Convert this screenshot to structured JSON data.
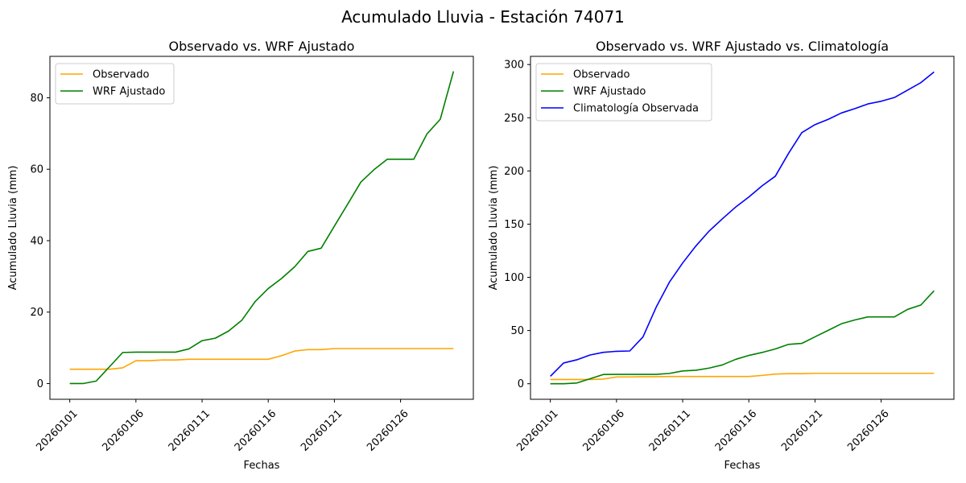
{
  "figure": {
    "suptitle": "Acumulado Lluvia - Estación 74071"
  },
  "chart_data": [
    {
      "type": "line",
      "title": "Observado vs. WRF Ajustado",
      "xlabel": "Fechas",
      "ylabel": "Acumulado Lluvia (mm)",
      "x": [
        "20260101",
        "20260102",
        "20260103",
        "20260104",
        "20260105",
        "20260106",
        "20260107",
        "20260108",
        "20260109",
        "20260110",
        "20260111",
        "20260112",
        "20260113",
        "20260114",
        "20260115",
        "20260116",
        "20260117",
        "20260118",
        "20260119",
        "20260120",
        "20260121",
        "20260122",
        "20260123",
        "20260124",
        "20260125",
        "20260126",
        "20260127",
        "20260128",
        "20260129",
        "20260130"
      ],
      "xticks": [
        "20260101",
        "20260106",
        "20260111",
        "20260116",
        "20260121",
        "20260126"
      ],
      "xlim": [
        -1.5,
        30.5
      ],
      "ylim": [
        -4.4,
        91.6
      ],
      "yticks": [
        0,
        20,
        40,
        60,
        80
      ],
      "legend": "upper-left",
      "series": [
        {
          "name": "Observado",
          "color": "#ffa500",
          "values": [
            4.0,
            4.0,
            4.0,
            4.0,
            4.4,
            6.4,
            6.4,
            6.6,
            6.6,
            6.8,
            6.8,
            6.8,
            6.8,
            6.8,
            6.8,
            6.8,
            7.8,
            9.1,
            9.5,
            9.5,
            9.8,
            9.8,
            9.8,
            9.8,
            9.8,
            9.8,
            9.8,
            9.8,
            9.8,
            9.8
          ]
        },
        {
          "name": "WRF Ajustado",
          "color": "#008000",
          "values": [
            0.0,
            0.0,
            0.7,
            4.7,
            8.7,
            8.8,
            8.8,
            8.8,
            8.8,
            9.7,
            12.0,
            12.7,
            14.7,
            17.7,
            22.9,
            26.6,
            29.4,
            32.7,
            37.0,
            37.9,
            44.1,
            50.2,
            56.4,
            59.9,
            62.8,
            62.8,
            62.8,
            69.9,
            74.0,
            87.4
          ]
        }
      ]
    },
    {
      "type": "line",
      "title": "Observado vs. WRF Ajustado vs. Climatología",
      "xlabel": "Fechas",
      "ylabel": "Acumulado Lluvia (mm)",
      "x": [
        "20260101",
        "20260102",
        "20260103",
        "20260104",
        "20260105",
        "20260106",
        "20260107",
        "20260108",
        "20260109",
        "20260110",
        "20260111",
        "20260112",
        "20260113",
        "20260114",
        "20260115",
        "20260116",
        "20260117",
        "20260118",
        "20260119",
        "20260120",
        "20260121",
        "20260122",
        "20260123",
        "20260124",
        "20260125",
        "20260126",
        "20260127",
        "20260128",
        "20260129",
        "20260130"
      ],
      "xticks": [
        "20260101",
        "20260106",
        "20260111",
        "20260116",
        "20260121",
        "20260126"
      ],
      "xlim": [
        -1.5,
        30.5
      ],
      "ylim": [
        -14.6,
        307.7
      ],
      "yticks": [
        0,
        50,
        100,
        150,
        200,
        250,
        300
      ],
      "legend": "upper-left",
      "series": [
        {
          "name": "Observado",
          "color": "#ffa500",
          "values": [
            4.0,
            4.0,
            4.0,
            4.0,
            4.4,
            6.4,
            6.4,
            6.6,
            6.6,
            6.8,
            6.8,
            6.8,
            6.8,
            6.8,
            6.8,
            6.8,
            7.8,
            9.1,
            9.5,
            9.5,
            9.8,
            9.8,
            9.8,
            9.8,
            9.8,
            9.8,
            9.8,
            9.8,
            9.8,
            9.8
          ]
        },
        {
          "name": "WRF Ajustado",
          "color": "#008000",
          "values": [
            0.0,
            0.0,
            0.7,
            4.7,
            8.7,
            8.8,
            8.8,
            8.8,
            8.8,
            9.7,
            12.0,
            12.7,
            14.7,
            17.7,
            22.9,
            26.6,
            29.4,
            32.7,
            37.0,
            37.9,
            44.1,
            50.2,
            56.4,
            59.9,
            62.8,
            62.8,
            62.8,
            69.9,
            74.0,
            87.4
          ]
        },
        {
          "name": "Climatología Observada",
          "color": "#0000ff",
          "values": [
            7.0,
            19.5,
            22.5,
            27.0,
            29.5,
            30.5,
            30.8,
            44.0,
            72.0,
            95.5,
            113.5,
            129.5,
            143.5,
            155.0,
            166.0,
            175.5,
            186.0,
            195.0,
            216.5,
            236.0,
            243.5,
            248.5,
            254.5,
            258.5,
            263.0,
            265.5,
            269.0,
            276.0,
            283.0,
            293.0
          ]
        }
      ]
    }
  ]
}
